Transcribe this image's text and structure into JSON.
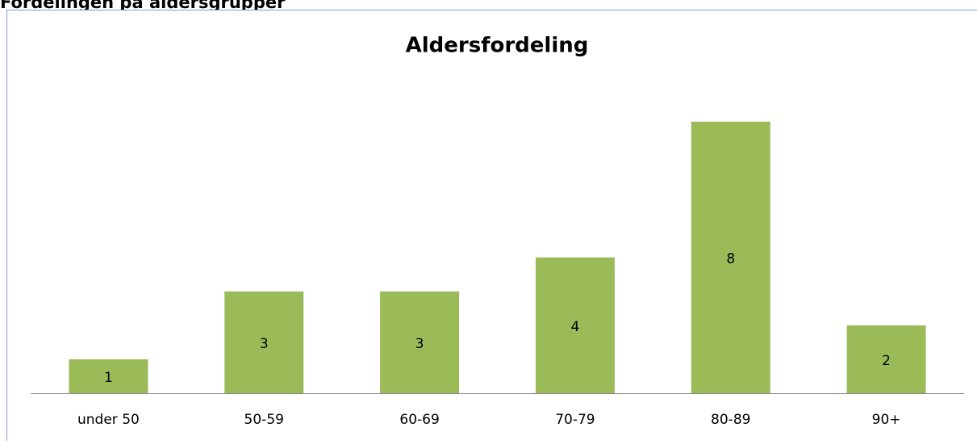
{
  "heading": "Fordelingen på aldersgrupper",
  "chart_data": {
    "type": "bar",
    "title": "Aldersfordeling",
    "categories": [
      "under 50",
      "50-59",
      "60-69",
      "70-79",
      "80-89",
      "90+"
    ],
    "values": [
      1,
      3,
      3,
      4,
      8,
      2
    ],
    "color": "#9bbb59",
    "grid": false
  }
}
